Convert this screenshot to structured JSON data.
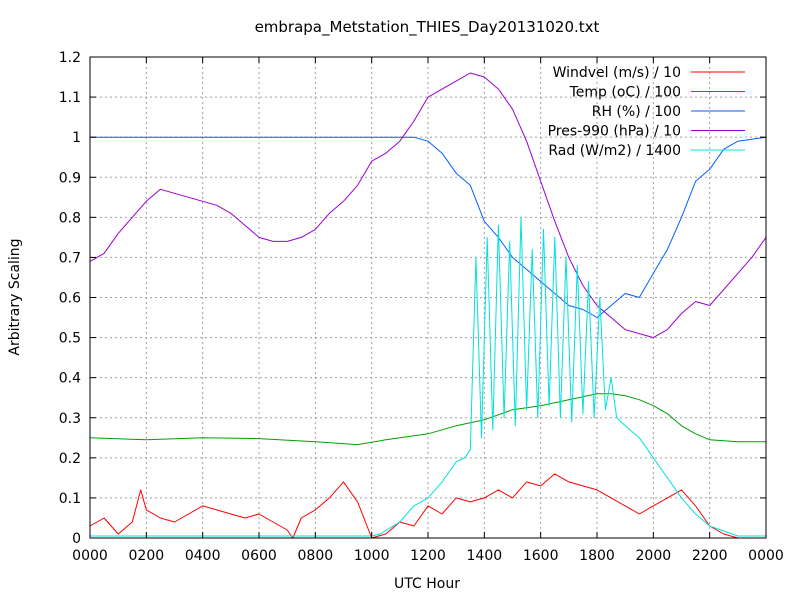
{
  "chart_data": {
    "type": "line",
    "title": "embrapa_Metstation_THIES_Day20131020.txt",
    "xlabel": "UTC Hour",
    "ylabel": "Arbitrary Scaling",
    "xlim": [
      0,
      2400
    ],
    "ylim": [
      0,
      1.2
    ],
    "x_ticks": [
      "0000",
      "0200",
      "0400",
      "0600",
      "0800",
      "1000",
      "1200",
      "1400",
      "1600",
      "1800",
      "2000",
      "2200",
      "0000"
    ],
    "y_ticks": [
      "0",
      "0.1",
      "0.2",
      "0.3",
      "0.4",
      "0.5",
      "0.6",
      "0.7",
      "0.8",
      "0.9",
      "1",
      "1.1",
      "1.2"
    ],
    "grid": true,
    "legend_position": "top-right",
    "series": [
      {
        "name": "Windvel (m/s) / 10",
        "color": "#ff0000",
        "x": [
          0,
          50,
          100,
          150,
          180,
          200,
          250,
          300,
          350,
          400,
          450,
          500,
          550,
          600,
          650,
          700,
          720,
          750,
          800,
          850,
          900,
          950,
          1000,
          1050,
          1100,
          1150,
          1200,
          1250,
          1300,
          1350,
          1400,
          1450,
          1500,
          1550,
          1600,
          1650,
          1700,
          1750,
          1800,
          1850,
          1900,
          1950,
          2000,
          2050,
          2100,
          2150,
          2200,
          2250,
          2300,
          2400
        ],
        "y": [
          0.03,
          0.05,
          0.01,
          0.04,
          0.12,
          0.07,
          0.05,
          0.04,
          0.06,
          0.08,
          0.07,
          0.06,
          0.05,
          0.06,
          0.04,
          0.02,
          0.0,
          0.05,
          0.07,
          0.1,
          0.14,
          0.09,
          0.0,
          0.01,
          0.04,
          0.03,
          0.08,
          0.06,
          0.1,
          0.09,
          0.1,
          0.12,
          0.1,
          0.14,
          0.13,
          0.16,
          0.14,
          0.13,
          0.12,
          0.1,
          0.08,
          0.06,
          0.08,
          0.1,
          0.12,
          0.08,
          0.03,
          0.01,
          0.0,
          0.0
        ]
      },
      {
        "name": "Temp (oC) / 100",
        "color": "#00a000",
        "x": [
          0,
          200,
          400,
          600,
          800,
          950,
          1050,
          1200,
          1300,
          1400,
          1500,
          1600,
          1700,
          1800,
          1850,
          1900,
          1950,
          2000,
          2050,
          2100,
          2150,
          2200,
          2300,
          2400
        ],
        "y": [
          0.25,
          0.245,
          0.25,
          0.248,
          0.24,
          0.233,
          0.245,
          0.26,
          0.28,
          0.295,
          0.32,
          0.33,
          0.345,
          0.36,
          0.36,
          0.355,
          0.345,
          0.33,
          0.31,
          0.28,
          0.26,
          0.245,
          0.24,
          0.24
        ]
      },
      {
        "name": "RH (%) / 100",
        "color": "#0060ff",
        "x": [
          0,
          200,
          400,
          600,
          800,
          1000,
          1100,
          1150,
          1200,
          1250,
          1300,
          1350,
          1400,
          1450,
          1500,
          1550,
          1600,
          1650,
          1700,
          1750,
          1800,
          1850,
          1900,
          1950,
          2000,
          2050,
          2100,
          2150,
          2200,
          2250,
          2300,
          2400
        ],
        "y": [
          1.0,
          1.0,
          1.0,
          1.0,
          1.0,
          1.0,
          1.0,
          1.0,
          0.99,
          0.96,
          0.91,
          0.88,
          0.79,
          0.75,
          0.7,
          0.67,
          0.64,
          0.61,
          0.58,
          0.57,
          0.55,
          0.58,
          0.61,
          0.6,
          0.66,
          0.72,
          0.8,
          0.89,
          0.92,
          0.97,
          0.99,
          1.0
        ]
      },
      {
        "name": "Pres-990 (hPa) / 10",
        "color": "#9b00d3",
        "x": [
          0,
          50,
          100,
          150,
          200,
          250,
          300,
          350,
          400,
          450,
          500,
          550,
          600,
          650,
          700,
          750,
          800,
          850,
          900,
          950,
          1000,
          1050,
          1100,
          1150,
          1200,
          1250,
          1300,
          1350,
          1400,
          1450,
          1500,
          1550,
          1600,
          1650,
          1700,
          1750,
          1800,
          1850,
          1900,
          1950,
          2000,
          2050,
          2100,
          2150,
          2200,
          2250,
          2300,
          2350,
          2400
        ],
        "y": [
          0.69,
          0.71,
          0.76,
          0.8,
          0.84,
          0.87,
          0.86,
          0.85,
          0.84,
          0.83,
          0.81,
          0.78,
          0.75,
          0.74,
          0.74,
          0.75,
          0.77,
          0.81,
          0.84,
          0.88,
          0.94,
          0.96,
          0.99,
          1.04,
          1.1,
          1.12,
          1.14,
          1.16,
          1.15,
          1.12,
          1.07,
          0.99,
          0.89,
          0.79,
          0.7,
          0.63,
          0.58,
          0.55,
          0.52,
          0.51,
          0.5,
          0.52,
          0.56,
          0.59,
          0.58,
          0.62,
          0.66,
          0.7,
          0.75
        ]
      },
      {
        "name": "Rad (W/m2) / 1400",
        "color": "#00e0e0",
        "x": [
          0,
          500,
          1000,
          1030,
          1100,
          1150,
          1200,
          1250,
          1300,
          1330,
          1350,
          1370,
          1390,
          1410,
          1430,
          1450,
          1470,
          1490,
          1510,
          1530,
          1550,
          1570,
          1590,
          1610,
          1630,
          1650,
          1670,
          1690,
          1710,
          1730,
          1750,
          1770,
          1790,
          1810,
          1830,
          1850,
          1870,
          1900,
          1950,
          2000,
          2050,
          2100,
          2150,
          2200,
          2300,
          2400
        ],
        "y": [
          0.005,
          0.005,
          0.005,
          0.01,
          0.04,
          0.08,
          0.1,
          0.14,
          0.19,
          0.2,
          0.22,
          0.7,
          0.25,
          0.75,
          0.27,
          0.78,
          0.3,
          0.74,
          0.28,
          0.8,
          0.32,
          0.72,
          0.3,
          0.77,
          0.33,
          0.75,
          0.3,
          0.7,
          0.29,
          0.68,
          0.31,
          0.64,
          0.3,
          0.6,
          0.32,
          0.4,
          0.3,
          0.28,
          0.25,
          0.2,
          0.15,
          0.1,
          0.06,
          0.03,
          0.005,
          0.005
        ]
      }
    ]
  }
}
